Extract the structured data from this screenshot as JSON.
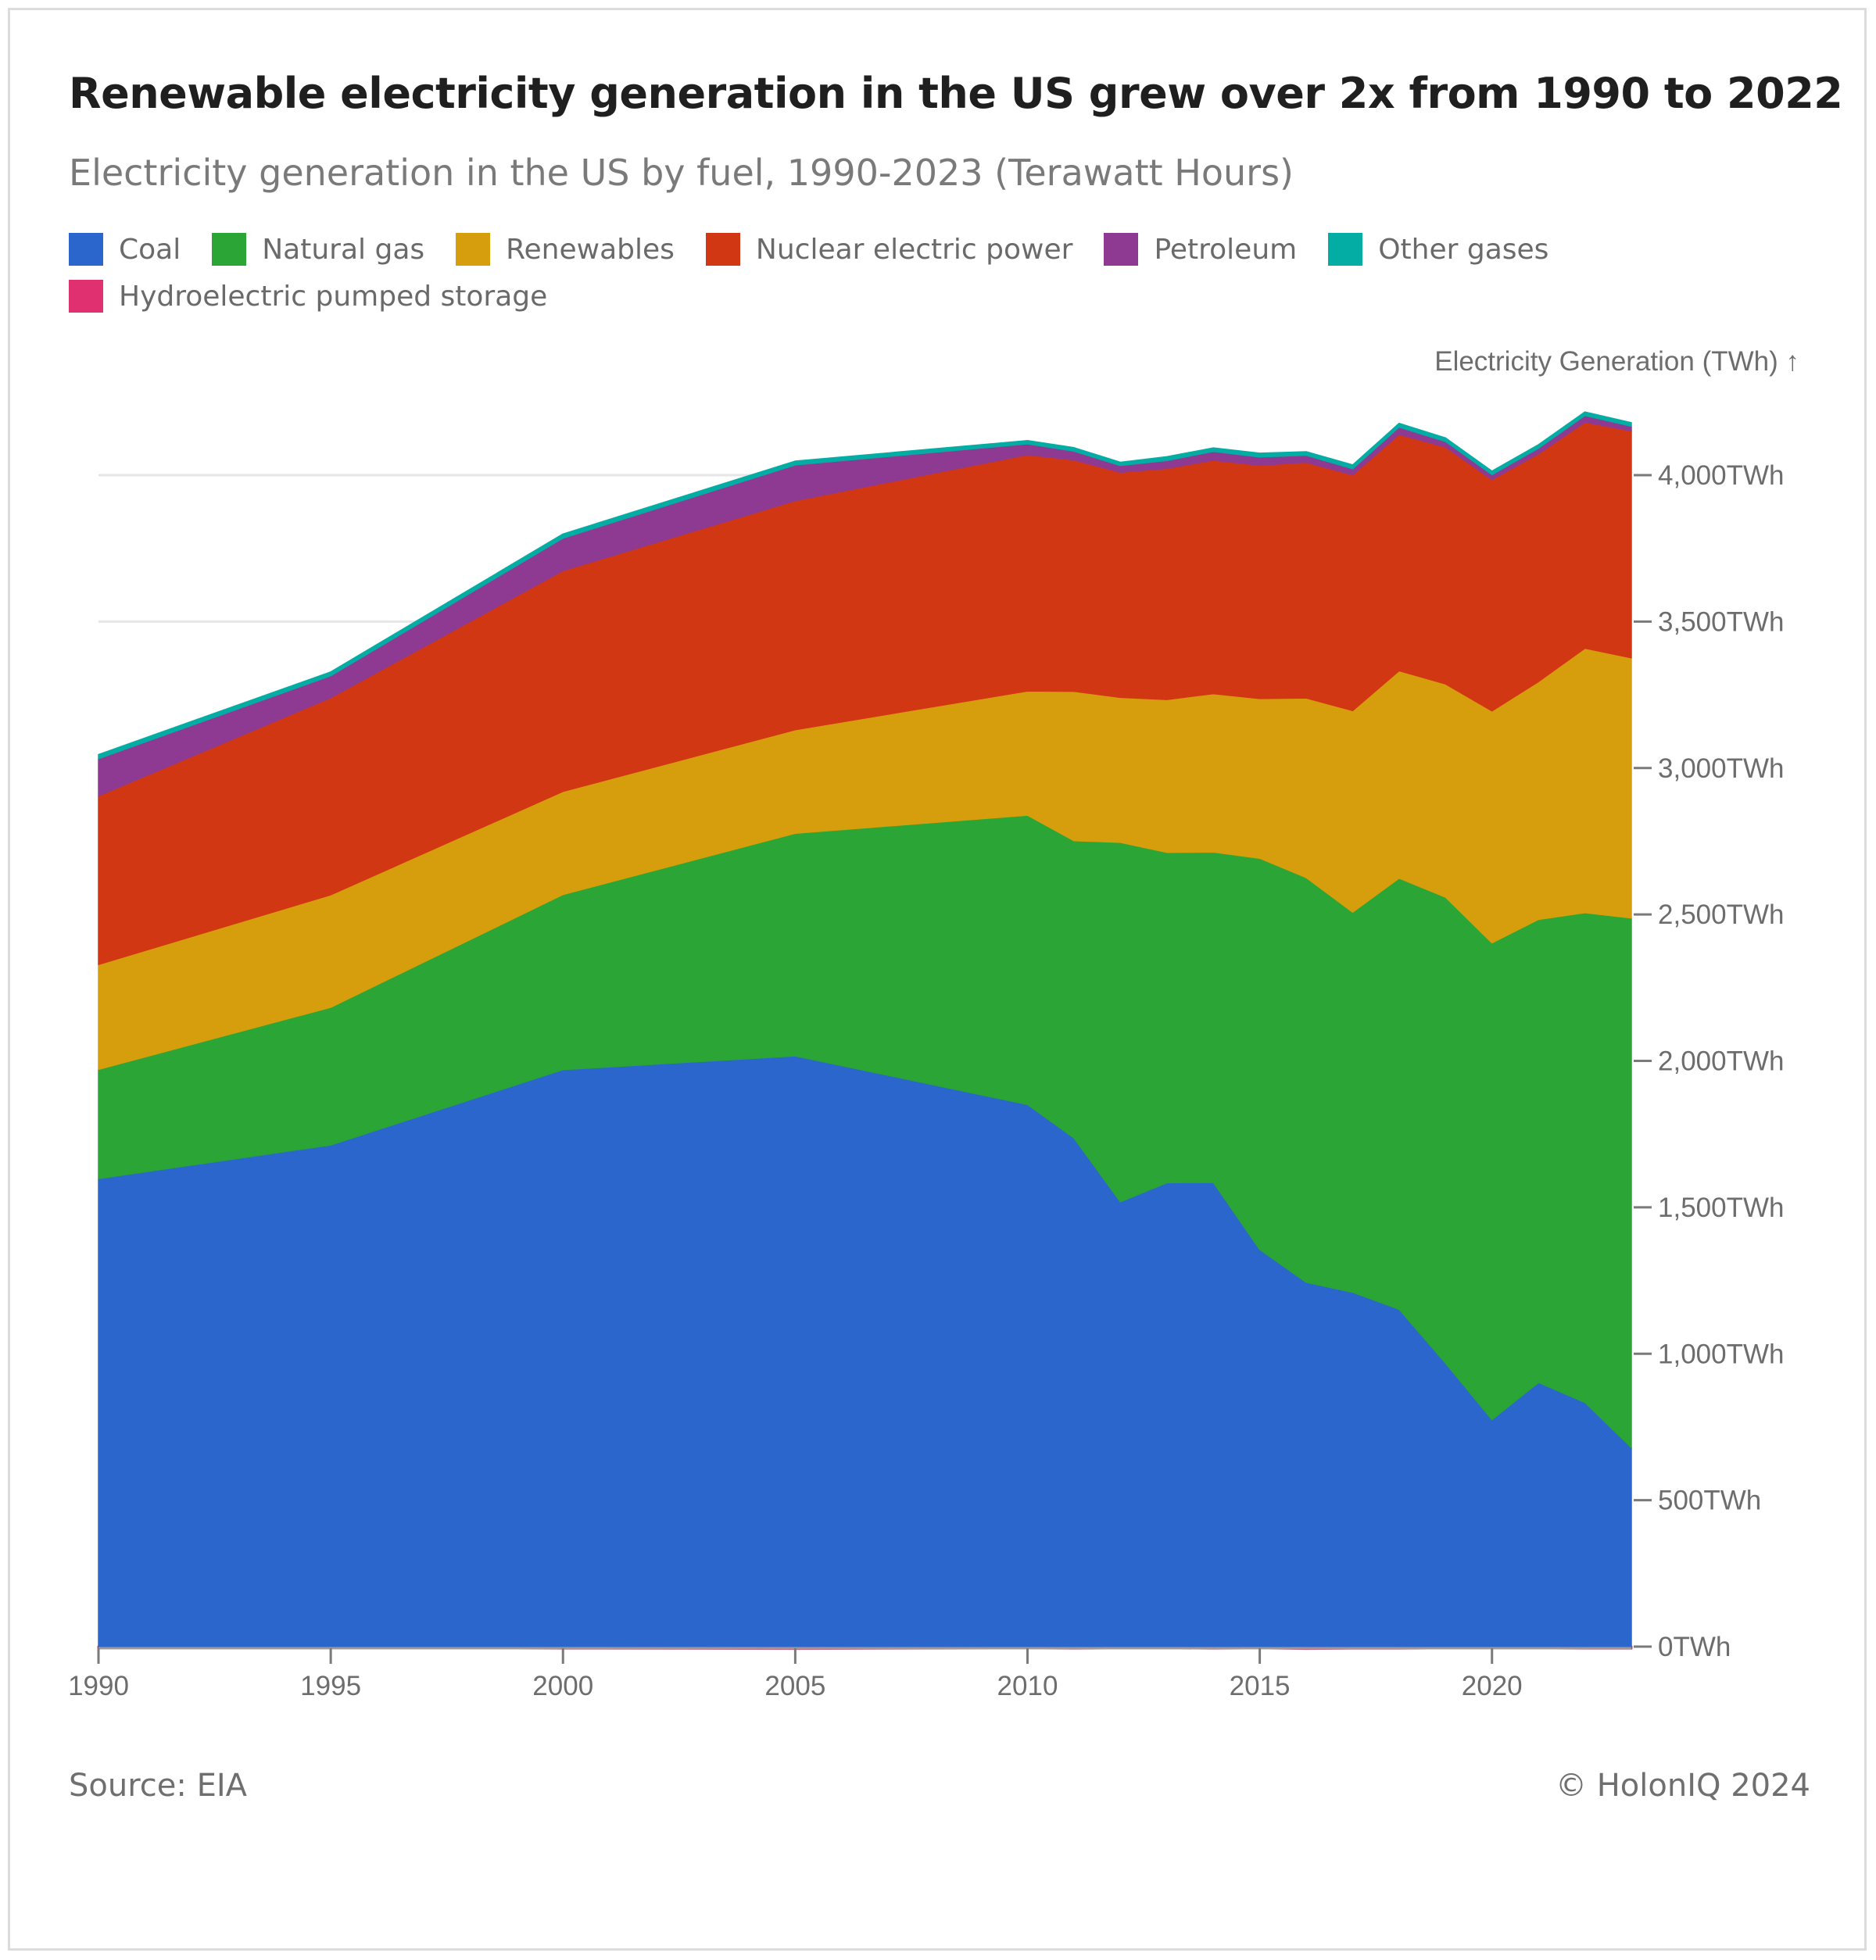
{
  "chart_data": {
    "type": "area",
    "stacked": true,
    "title": "Renewable electricity generation in the US grew over 2x from 1990 to 2022",
    "subtitle": "Electricity generation in the US by fuel, 1990-2023 (Terawatt Hours)",
    "ylabel": "Electricity Generation (TWh) ↑",
    "xlabel": "",
    "ylim": [
      0,
      4000
    ],
    "xlim": [
      1990,
      2023
    ],
    "x_ticks": [
      1990,
      1995,
      2000,
      2005,
      2010,
      2015,
      2020
    ],
    "y_ticks": [
      {
        "value": 0,
        "label": "0TWh"
      },
      {
        "value": 500,
        "label": "500TWh"
      },
      {
        "value": 1000,
        "label": "1,000TWh"
      },
      {
        "value": 1500,
        "label": "1,500TWh"
      },
      {
        "value": 2000,
        "label": "2,000TWh"
      },
      {
        "value": 2500,
        "label": "2,500TWh"
      },
      {
        "value": 3000,
        "label": "3,000TWh"
      },
      {
        "value": 3500,
        "label": "3,500TWh"
      },
      {
        "value": 4000,
        "label": "4,000TWh"
      }
    ],
    "grid": true,
    "legend_position": "top-left",
    "x": [
      1990,
      1995,
      2000,
      2005,
      2010,
      2011,
      2012,
      2013,
      2014,
      2015,
      2016,
      2017,
      2018,
      2019,
      2020,
      2021,
      2022,
      2023
    ],
    "series": [
      {
        "name": "Hydroelectric pumped storage",
        "color": "#e0306f",
        "values": [
          -4,
          -3,
          -6,
          -7,
          -5,
          -6,
          -5,
          -5,
          -6,
          -5,
          -7,
          -6,
          -6,
          -5,
          -5,
          -5,
          -6,
          -6
        ]
      },
      {
        "name": "Coal",
        "color": "#2a66cc",
        "values": [
          1598,
          1713,
          1970,
          2017,
          1851,
          1737,
          1519,
          1584,
          1585,
          1356,
          1244,
          1210,
          1152,
          968,
          775,
          902,
          834,
          680
        ]
      },
      {
        "name": "Natural gas",
        "color": "#2ba535",
        "values": [
          373,
          470,
          598,
          760,
          988,
          1015,
          1227,
          1128,
          1128,
          1336,
          1382,
          1298,
          1472,
          1591,
          1628,
          1581,
          1672,
          1808
        ]
      },
      {
        "name": "Renewables",
        "color": "#d69e0d",
        "values": [
          358,
          384,
          352,
          354,
          424,
          510,
          495,
          522,
          541,
          545,
          613,
          688,
          708,
          728,
          792,
          812,
          903,
          888
        ]
      },
      {
        "name": "Nuclear electric power",
        "color": "#d23714",
        "values": [
          576,
          673,
          754,
          782,
          807,
          790,
          769,
          789,
          797,
          797,
          805,
          805,
          807,
          809,
          790,
          778,
          772,
          775
        ]
      },
      {
        "name": "Petroleum",
        "color": "#8e3a92",
        "values": [
          127,
          75,
          111,
          122,
          37,
          30,
          23,
          27,
          30,
          28,
          24,
          21,
          25,
          19,
          17,
          19,
          23,
          16
        ]
      },
      {
        "name": "Other gases",
        "color": "#04ada4",
        "values": [
          14,
          13,
          14,
          13,
          11,
          12,
          11,
          13,
          12,
          13,
          12,
          13,
          13,
          12,
          12,
          12,
          12,
          12
        ]
      }
    ]
  },
  "legend": [
    {
      "label": "Coal",
      "color": "#2a66cc"
    },
    {
      "label": "Natural gas",
      "color": "#2ba535"
    },
    {
      "label": "Renewables",
      "color": "#d69e0d"
    },
    {
      "label": "Nuclear electric power",
      "color": "#d23714"
    },
    {
      "label": "Petroleum",
      "color": "#8e3a92"
    },
    {
      "label": "Other gases",
      "color": "#04ada4"
    },
    {
      "label": "Hydroelectric pumped storage",
      "color": "#e0306f"
    }
  ],
  "footer": {
    "source": "Source: EIA",
    "copyright": "© HolonIQ 2024"
  }
}
